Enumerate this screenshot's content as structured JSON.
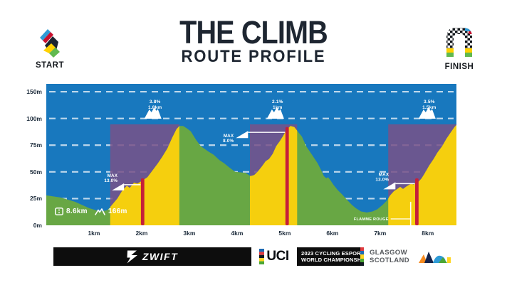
{
  "header": {
    "title": "THE CLIMB",
    "subtitle": "ROUTE PROFILE",
    "start_label": "START",
    "finish_label": "FINISH"
  },
  "stats": {
    "distance": "8.6km",
    "elevation": "166m"
  },
  "chart_data": {
    "type": "area",
    "title": "THE CLIMB route profile",
    "x_max_km": 8.6,
    "x_ticks": [
      {
        "label": "1km",
        "km": 1
      },
      {
        "label": "2km",
        "km": 2
      },
      {
        "label": "3km",
        "km": 3
      },
      {
        "label": "4km",
        "km": 4
      },
      {
        "label": "5km",
        "km": 5
      },
      {
        "label": "6km",
        "km": 6
      },
      {
        "label": "7km",
        "km": 7
      },
      {
        "label": "8km",
        "km": 8
      }
    ],
    "y_ticks": [
      {
        "label": "150m",
        "m": 150
      },
      {
        "label": "100m",
        "m": 100
      },
      {
        "label": "75m",
        "m": 75
      },
      {
        "label": "50m",
        "m": 50
      },
      {
        "label": "25m",
        "m": 25
      },
      {
        "label": "0m",
        "m": 0
      }
    ],
    "profile_km_m": [
      [
        0,
        28
      ],
      [
        0.3,
        26
      ],
      [
        0.6,
        22
      ],
      [
        0.9,
        16
      ],
      [
        1.12,
        13
      ],
      [
        1.27,
        14
      ],
      [
        1.34,
        17
      ],
      [
        1.49,
        25
      ],
      [
        1.6,
        33
      ],
      [
        1.69,
        37
      ],
      [
        1.75,
        35
      ],
      [
        1.84,
        40
      ],
      [
        1.91,
        39
      ],
      [
        2.02,
        42
      ],
      [
        2.12,
        45
      ],
      [
        2.24,
        52
      ],
      [
        2.34,
        58
      ],
      [
        2.43,
        64
      ],
      [
        2.54,
        72
      ],
      [
        2.64,
        82
      ],
      [
        2.73,
        90
      ],
      [
        2.79,
        93
      ],
      [
        2.87,
        93
      ],
      [
        2.94,
        91
      ],
      [
        3.03,
        88
      ],
      [
        3.14,
        80
      ],
      [
        3.24,
        74
      ],
      [
        3.4,
        69
      ],
      [
        3.51,
        66
      ],
      [
        3.63,
        61
      ],
      [
        3.73,
        58
      ],
      [
        3.84,
        54
      ],
      [
        3.96,
        50
      ],
      [
        4.18,
        49
      ],
      [
        4.28,
        46
      ],
      [
        4.36,
        47
      ],
      [
        4.43,
        50
      ],
      [
        4.52,
        55
      ],
      [
        4.6,
        60
      ],
      [
        4.67,
        62
      ],
      [
        4.75,
        67
      ],
      [
        4.82,
        74
      ],
      [
        4.9,
        79
      ],
      [
        4.97,
        84
      ],
      [
        5.03,
        89
      ],
      [
        5.12,
        93
      ],
      [
        5.2,
        92
      ],
      [
        5.27,
        88
      ],
      [
        5.36,
        83
      ],
      [
        5.45,
        74
      ],
      [
        5.57,
        66
      ],
      [
        5.69,
        58
      ],
      [
        5.78,
        50
      ],
      [
        5.82,
        46
      ],
      [
        5.87,
        44
      ],
      [
        5.91,
        45
      ],
      [
        5.96,
        42
      ],
      [
        6.02,
        38
      ],
      [
        6.11,
        33
      ],
      [
        6.2,
        29
      ],
      [
        6.3,
        24
      ],
      [
        6.41,
        19
      ],
      [
        6.49,
        16
      ],
      [
        6.6,
        13
      ],
      [
        6.72,
        12
      ],
      [
        6.84,
        13
      ],
      [
        6.94,
        15
      ],
      [
        7.05,
        19
      ],
      [
        7.14,
        23
      ],
      [
        7.21,
        28
      ],
      [
        7.29,
        32
      ],
      [
        7.36,
        34
      ],
      [
        7.42,
        36
      ],
      [
        7.48,
        34
      ],
      [
        7.54,
        36
      ],
      [
        7.61,
        38
      ],
      [
        7.66,
        39
      ],
      [
        7.7,
        38
      ],
      [
        7.75,
        40
      ],
      [
        7.81,
        41
      ],
      [
        7.87,
        44
      ],
      [
        7.94,
        49
      ],
      [
        8.03,
        56
      ],
      [
        8.12,
        62
      ],
      [
        8.2,
        68
      ],
      [
        8.3,
        74
      ],
      [
        8.39,
        81
      ],
      [
        8.48,
        87
      ],
      [
        8.56,
        92
      ],
      [
        8.6,
        94
      ]
    ],
    "climbs": [
      {
        "grade": "3.8%",
        "length": "1.8km",
        "from_km": 1.34,
        "to_km": 2.79,
        "box_top_m": 94.5,
        "ann_km": 2.28,
        "max": {
          "label": "MAX",
          "value": "13.0%",
          "tri_to_km": 1.63,
          "line_elev_m": 38,
          "text_side": "above"
        },
        "red_km": 2.02,
        "red_top_m": 44
      },
      {
        "grade": "2.1%",
        "length": "1km",
        "from_km": 4.27,
        "to_km": 5.26,
        "box_top_m": 94.5,
        "ann_km": 4.85,
        "max": {
          "label": "MAX",
          "value": "8.0%",
          "tri_to_km": 4.23,
          "line_elev_m": 87,
          "text_side": "below"
        },
        "red_km": 5.05,
        "red_top_m": 92
      },
      {
        "grade": "3.5%",
        "length": "1.5km",
        "from_km": 7.17,
        "to_km": 8.6,
        "box_top_m": 94.5,
        "ann_km": 8.03,
        "max": {
          "label": "MAX",
          "value": "13.0%",
          "tri_to_km": 7.32,
          "line_elev_m": 39,
          "text_side": "above"
        },
        "red_km": 7.77,
        "red_top_m": 44
      }
    ],
    "flamme_rouge": {
      "label": "FLAMME ROUGE",
      "km": 7.64
    },
    "colors": {
      "sky": "#1878be",
      "flat": "#68a744",
      "climb": "#f5cf0e",
      "segment": "#795188",
      "max_marker": "#c51f3a",
      "grid": "#e8f0f8"
    }
  },
  "footer": {
    "zwift": "ZWIFT",
    "uci": "UCI",
    "event_line1": "2023 CYCLING ESPORTS",
    "event_line2": "WORLD CHAMPIONSHIPS",
    "location_line1": "GLASGOW",
    "location_line2": "SCOTLAND"
  }
}
